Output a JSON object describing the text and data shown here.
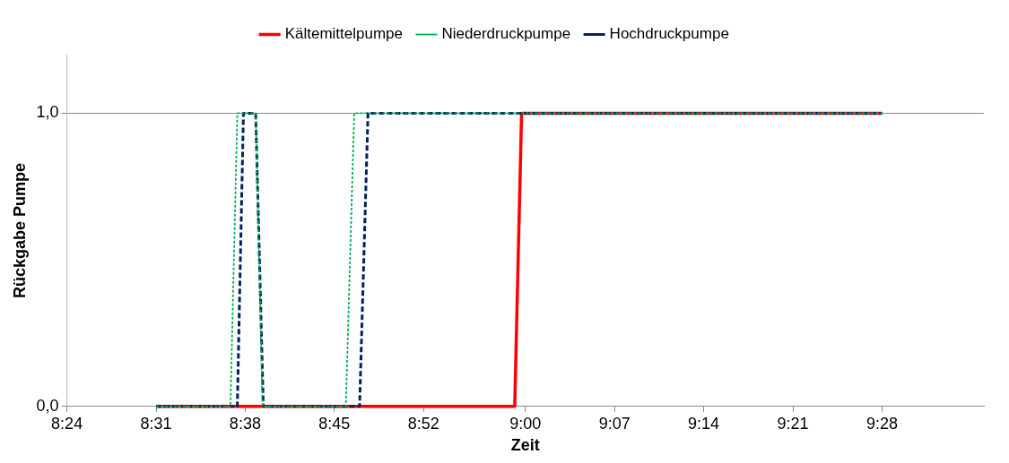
{
  "chart_data": {
    "type": "line",
    "xlabel": "Zeit",
    "ylabel": "Rückgabe Pumpe",
    "xlim": [
      8.4,
      9.6
    ],
    "xticks": [
      {
        "value": 8.4,
        "label": "8:24"
      },
      {
        "value": 8.5167,
        "label": "8:31"
      },
      {
        "value": 8.6333,
        "label": "8:38"
      },
      {
        "value": 8.75,
        "label": "8:45"
      },
      {
        "value": 8.8667,
        "label": "8:52"
      },
      {
        "value": 9.0,
        "label": "9:00"
      },
      {
        "value": 9.1167,
        "label": "9:07"
      },
      {
        "value": 9.2333,
        "label": "9:14"
      },
      {
        "value": 9.35,
        "label": "9:21"
      },
      {
        "value": 9.4667,
        "label": "9:28"
      }
    ],
    "ylim": [
      0,
      1.2
    ],
    "yticks": [
      {
        "value": 0,
        "label": "0,0"
      },
      {
        "value": 1,
        "label": "1,0"
      }
    ],
    "grid": "y",
    "legend": "top",
    "marker": "none",
    "series": [
      {
        "name": "Kältemittelpumpe",
        "color": "#ff0000",
        "line_style": "solid",
        "x": [
          8.5167,
          8.986,
          8.995,
          9.4667
        ],
        "values": [
          0,
          0,
          1,
          1
        ]
      },
      {
        "name": "Niederdruckpumpe",
        "color": "#00b050",
        "line_style": "dotted",
        "x": [
          8.5167,
          8.614,
          8.623,
          8.647,
          8.656,
          8.765,
          8.776,
          9.4667
        ],
        "values": [
          0,
          0,
          1,
          1,
          0,
          0,
          1,
          1
        ]
      },
      {
        "name": "Hochdruckpumpe",
        "color": "#002060",
        "line_style": "dashed",
        "x": [
          8.5167,
          8.623,
          8.631,
          8.647,
          8.657,
          8.783,
          8.794,
          9.4667
        ],
        "values": [
          0,
          0,
          1,
          1,
          0,
          0,
          1,
          1
        ]
      }
    ]
  }
}
